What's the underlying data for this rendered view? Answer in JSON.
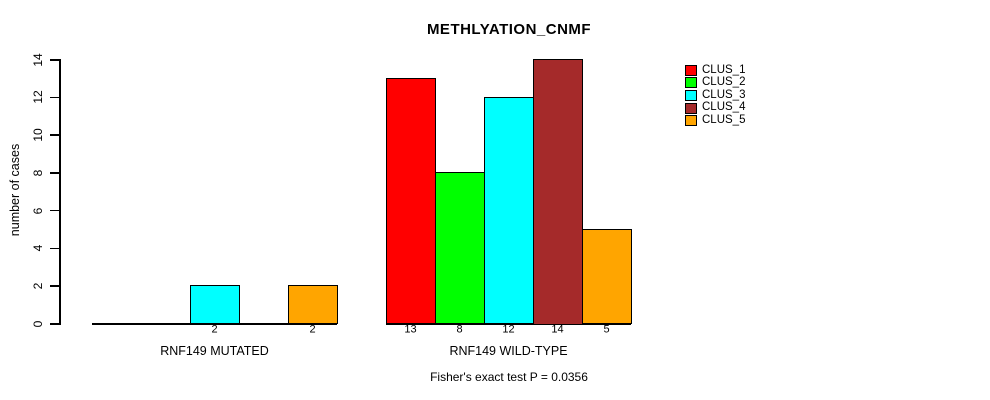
{
  "title": "METHLYATION_CNMF",
  "ylabel": "number of cases",
  "annotation": "Fisher's exact test P = 0.0356",
  "legend": {
    "entries": [
      {
        "label": "CLUS_1",
        "color": "#FF0000"
      },
      {
        "label": "CLUS_2",
        "color": "#00FF00"
      },
      {
        "label": "CLUS_3",
        "color": "#00FFFF"
      },
      {
        "label": "CLUS_4",
        "color": "#A52A2A"
      },
      {
        "label": "CLUS_5",
        "color": "#FFA500"
      }
    ]
  },
  "chart_data": {
    "type": "bar",
    "title": "METHLYATION_CNMF",
    "xlabel": "",
    "ylabel": "number of cases",
    "ylim": [
      0,
      14
    ],
    "yticks": [
      0,
      2,
      4,
      6,
      8,
      10,
      12,
      14
    ],
    "grid": false,
    "legend_position": "right",
    "categories": [
      "RNF149 MUTATED",
      "RNF149 WILD-TYPE"
    ],
    "series": [
      {
        "name": "CLUS_1",
        "color": "#FF0000",
        "values": [
          0,
          13
        ]
      },
      {
        "name": "CLUS_2",
        "color": "#00FF00",
        "values": [
          0,
          8
        ]
      },
      {
        "name": "CLUS_3",
        "color": "#00FFFF",
        "values": [
          2,
          12
        ]
      },
      {
        "name": "CLUS_4",
        "color": "#A52A2A",
        "values": [
          0,
          14
        ]
      },
      {
        "name": "CLUS_5",
        "color": "#FFA500",
        "values": [
          2,
          5
        ]
      }
    ],
    "bar_value_labels": {
      "show_only_nonzero": true
    },
    "annotation": "Fisher's exact test P = 0.0356"
  }
}
